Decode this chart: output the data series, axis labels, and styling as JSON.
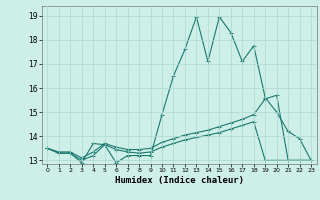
{
  "xlabel": "Humidex (Indice chaleur)",
  "xlim": [
    -0.5,
    23.5
  ],
  "ylim": [
    12.85,
    19.4
  ],
  "yticks": [
    13,
    14,
    15,
    16,
    17,
    18,
    19
  ],
  "xticks": [
    0,
    1,
    2,
    3,
    4,
    5,
    6,
    7,
    8,
    9,
    10,
    11,
    12,
    13,
    14,
    15,
    16,
    17,
    18,
    19,
    20,
    21,
    22,
    23
  ],
  "background_color": "#ceeee8",
  "grid_color": "#aed8d0",
  "line_color": "#1a7a6e",
  "line1_x": [
    0,
    1,
    2,
    3,
    4,
    5,
    6,
    7,
    8,
    9,
    10,
    11,
    12,
    13,
    14,
    15,
    16,
    17,
    18,
    19,
    20,
    21,
    22,
    23
  ],
  "line1_y": [
    13.5,
    13.3,
    13.3,
    12.9,
    13.7,
    13.65,
    12.9,
    13.2,
    13.2,
    13.2,
    14.9,
    16.5,
    17.6,
    18.95,
    17.1,
    18.95,
    18.3,
    17.1,
    17.75,
    15.6,
    15.0,
    14.2,
    13.9,
    13.0
  ],
  "line2_x": [
    0,
    1,
    2,
    3,
    4,
    5,
    6,
    7,
    8,
    9,
    10,
    11,
    12,
    13,
    14,
    15,
    16,
    17,
    18,
    19,
    20,
    21,
    22,
    23
  ],
  "line2_y": [
    13.5,
    13.35,
    13.35,
    13.1,
    13.35,
    13.7,
    13.55,
    13.45,
    13.45,
    13.5,
    13.75,
    13.9,
    14.05,
    14.15,
    14.25,
    14.4,
    14.55,
    14.7,
    14.9,
    15.55,
    15.7,
    13.0,
    13.0,
    13.0
  ],
  "line3_x": [
    0,
    1,
    2,
    3,
    4,
    5,
    6,
    7,
    8,
    9,
    10,
    11,
    12,
    13,
    14,
    15,
    16,
    17,
    18,
    19,
    20,
    21,
    22,
    23
  ],
  "line3_y": [
    13.5,
    13.3,
    13.3,
    13.0,
    13.2,
    13.65,
    13.45,
    13.35,
    13.3,
    13.35,
    13.55,
    13.7,
    13.85,
    13.95,
    14.05,
    14.15,
    14.3,
    14.45,
    14.6,
    13.0,
    13.0,
    13.0,
    13.0,
    13.0
  ]
}
